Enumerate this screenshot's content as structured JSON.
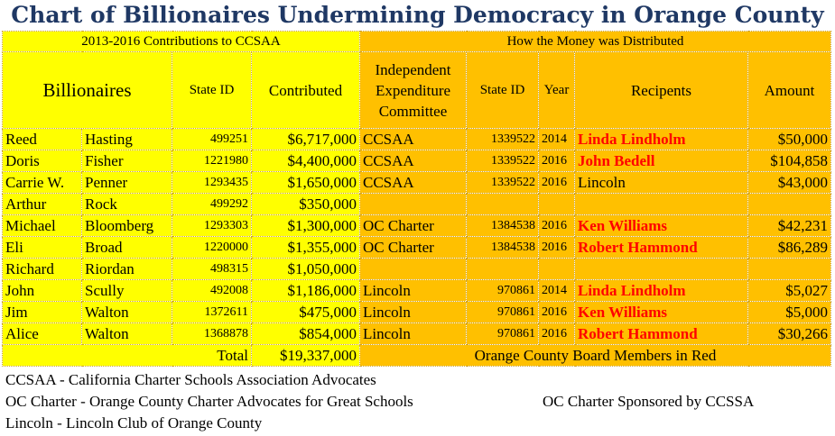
{
  "title": "Chart of Billionaires Undermining Democracy in Orange County",
  "headers": {
    "left_group": "2013-2016 Contributions to CCSAA",
    "right_group": "How the Money was Distributed",
    "billionaires": "Billionaires",
    "state_id": "State ID",
    "contributed": "Contributed",
    "iec": "Independent Expenditure Committee",
    "state_id2": "State ID",
    "year": "Year",
    "recipients": "Recipents",
    "amount": "Amount"
  },
  "rows": [
    {
      "first": "Reed",
      "last": "Hasting",
      "sid": "499251",
      "contributed": "$6,717,000",
      "committee": "CCSAA",
      "sid2": "1339522",
      "year": "2014",
      "recipient": "Linda Lindholm",
      "amount": "$50,000",
      "red": true
    },
    {
      "first": "Doris",
      "last": "Fisher",
      "sid": "1221980",
      "contributed": "$4,400,000",
      "committee": "CCSAA",
      "sid2": "1339522",
      "year": "2016",
      "recipient": "John Bedell",
      "amount": "$104,858",
      "red": true
    },
    {
      "first": "Carrie W.",
      "last": "Penner",
      "sid": "1293435",
      "contributed": "$1,650,000",
      "committee": "CCSAA",
      "sid2": "1339522",
      "year": "2016",
      "recipient": "Lincoln",
      "amount": "$43,000",
      "red": false
    },
    {
      "first": "Arthur",
      "last": "Rock",
      "sid": "499292",
      "contributed": "$350,000",
      "committee": "",
      "sid2": "",
      "year": "",
      "recipient": "",
      "amount": "",
      "red": false
    },
    {
      "first": "Michael",
      "last": "Bloomberg",
      "sid": "1293303",
      "contributed": "$1,300,000",
      "committee": "OC Charter",
      "sid2": "1384538",
      "year": "2016",
      "recipient": "Ken Williams",
      "amount": "$42,231",
      "red": true
    },
    {
      "first": "Eli",
      "last": "Broad",
      "sid": "1220000",
      "contributed": "$1,355,000",
      "committee": "OC Charter",
      "sid2": "1384538",
      "year": "2016",
      "recipient": "Robert Hammond",
      "amount": "$86,289",
      "red": true
    },
    {
      "first": "Richard",
      "last": "Riordan",
      "sid": "498315",
      "contributed": "$1,050,000",
      "committee": "",
      "sid2": "",
      "year": "",
      "recipient": "",
      "amount": "",
      "red": false
    },
    {
      "first": "John",
      "last": "Scully",
      "sid": "492008",
      "contributed": "$1,186,000",
      "committee": "Lincoln",
      "sid2": "970861",
      "year": "2014",
      "recipient": "Linda Lindholm",
      "amount": "$5,027",
      "red": true
    },
    {
      "first": "Jim",
      "last": "Walton",
      "sid": "1372611",
      "contributed": "$475,000",
      "committee": "Lincoln",
      "sid2": "970861",
      "year": "2016",
      "recipient": "Ken Williams",
      "amount": "$5,000",
      "red": true
    },
    {
      "first": "Alice",
      "last": "Walton",
      "sid": "1368878",
      "contributed": "$854,000",
      "committee": "Lincoln",
      "sid2": "970861",
      "year": "2016",
      "recipient": "Robert Hammond",
      "amount": "$30,266",
      "red": true
    }
  ],
  "total_label": "Total",
  "total_value": "$19,337,000",
  "note_red": "Orange County Board Members in Red",
  "footnotes": {
    "ccsaa": "CCSAA - California Charter Schools Association Advocates",
    "oc_charter": "OC Charter - Orange County Charter Advocates for Great Schools",
    "oc_sponsor": "OC Charter Sponsored by CCSSA",
    "lincoln": "Lincoln - Lincoln Club of Orange County"
  },
  "colors": {
    "title": "#1f3864",
    "left_bg": "#ffff00",
    "right_bg": "#ffc000",
    "highlight": "#ff0000"
  }
}
